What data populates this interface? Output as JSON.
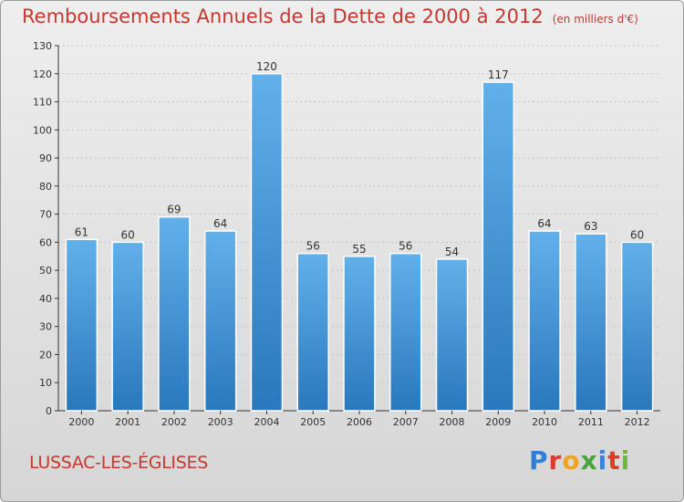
{
  "title": "Remboursements Annuels de la Dette de 2000 à 2012",
  "unit": "(en milliers d'€)",
  "commune": "LUSSAC-LES-ÉGLISES",
  "logo": {
    "text": "Proxiti",
    "letter_colors": [
      "#2f7fd6",
      "#e23a2a",
      "#f2a51b",
      "#4aa43c",
      "#3a86d4",
      "#e23a2a",
      "#6fb83a"
    ]
  },
  "colors": {
    "bar_light": "#62b0ea",
    "bar_dark": "#2a78bd",
    "text_red": "#c8372d",
    "axis": "#333333"
  },
  "chart_data": {
    "type": "bar",
    "categories": [
      "2000",
      "2001",
      "2002",
      "2003",
      "2004",
      "2005",
      "2006",
      "2007",
      "2008",
      "2009",
      "2010",
      "2011",
      "2012"
    ],
    "values": [
      61,
      60,
      69,
      64,
      120,
      56,
      55,
      56,
      54,
      117,
      64,
      63,
      60
    ],
    "ylim": [
      0,
      130
    ],
    "yticks": [
      0,
      10,
      20,
      30,
      40,
      50,
      60,
      70,
      80,
      90,
      100,
      110,
      120,
      130
    ],
    "grid": true,
    "data_labels": true
  }
}
